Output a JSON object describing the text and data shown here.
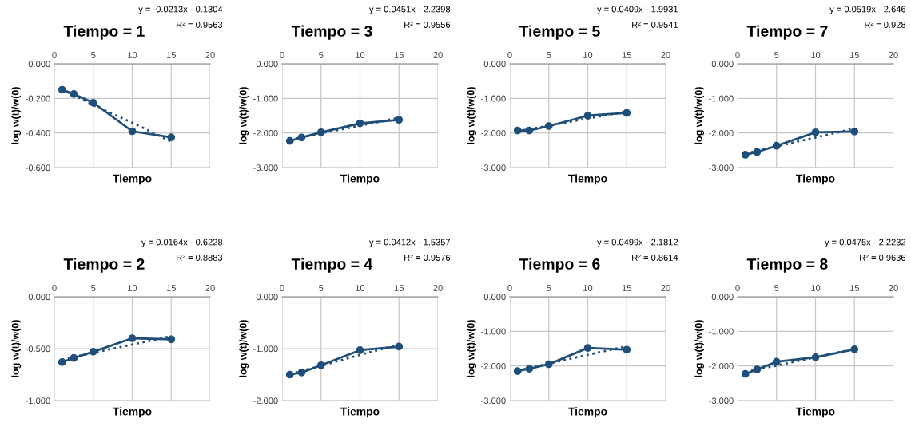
{
  "chart_data": [
    {
      "type": "line",
      "title": "Tiempo = 1",
      "xlabel": "Tiempo",
      "ylabel": "log w(t)/w(0)",
      "annotations": [
        "y = -0.0213x - 0.1304",
        "R² = 0.9563"
      ],
      "x": [
        1,
        2.5,
        5,
        10,
        15
      ],
      "xlim": [
        0,
        20
      ],
      "xticks": [
        0,
        5,
        10,
        15,
        20
      ],
      "ylim": [
        -0.6,
        0
      ],
      "yticks": [
        {
          "value": 0,
          "label": "0.000"
        },
        {
          "value": -0.2,
          "label": "-0.200"
        },
        {
          "value": -0.4,
          "label": "-0.400"
        },
        {
          "value": -0.6,
          "label": "-0.600"
        }
      ],
      "grid": true,
      "legend": false,
      "series": [
        {
          "color": "#1f4e79",
          "marker": "circle",
          "line_style": "solid",
          "values": [
            -0.15,
            -0.175,
            -0.225,
            -0.39,
            -0.425
          ]
        },
        {
          "color": "#1f4e79",
          "marker": "none",
          "line_style": "dotted",
          "values": [
            -0.15,
            -0.18,
            -0.24,
            -0.34,
            -0.45
          ]
        }
      ]
    },
    {
      "type": "line",
      "title": "Tiempo = 3",
      "xlabel": "Tiempo",
      "ylabel": "log w(t)/w(0)",
      "annotations": [
        "y = 0.0451x - 2.2398",
        "R² = 0.9556"
      ],
      "x": [
        1,
        2.5,
        5,
        10,
        15
      ],
      "xlim": [
        0,
        20
      ],
      "xticks": [
        0,
        5,
        10,
        15,
        20
      ],
      "ylim": [
        -3,
        0
      ],
      "yticks": [
        {
          "value": 0,
          "label": "0.000"
        },
        {
          "value": -1,
          "label": "-1.000"
        },
        {
          "value": -2,
          "label": "-2.000"
        },
        {
          "value": -3,
          "label": "-3.000"
        }
      ],
      "grid": true,
      "legend": false,
      "series": [
        {
          "color": "#1f4e79",
          "marker": "circle",
          "line_style": "solid",
          "values": [
            -2.23,
            -2.13,
            -1.98,
            -1.72,
            -1.62
          ]
        },
        {
          "color": "#1f4e79",
          "marker": "none",
          "line_style": "dotted",
          "values": [
            -2.19,
            -2.13,
            -2.01,
            -1.79,
            -1.56
          ]
        }
      ]
    },
    {
      "type": "line",
      "title": "Tiempo = 5",
      "xlabel": "Tiempo",
      "ylabel": "log w(t)/w(0)",
      "annotations": [
        "y = 0.0409x - 1.9931",
        "R² = 0.9541"
      ],
      "x": [
        1,
        2.5,
        5,
        10,
        15
      ],
      "xlim": [
        0,
        20
      ],
      "xticks": [
        0,
        5,
        10,
        15,
        20
      ],
      "ylim": [
        -3,
        0
      ],
      "yticks": [
        {
          "value": 0,
          "label": "0.000"
        },
        {
          "value": -1,
          "label": "-1.000"
        },
        {
          "value": -2,
          "label": "-2.000"
        },
        {
          "value": -3,
          "label": "-3.000"
        }
      ],
      "grid": true,
      "legend": false,
      "series": [
        {
          "color": "#1f4e79",
          "marker": "circle",
          "line_style": "solid",
          "values": [
            -1.93,
            -1.93,
            -1.8,
            -1.5,
            -1.42
          ]
        },
        {
          "color": "#1f4e79",
          "marker": "none",
          "line_style": "dotted",
          "values": [
            -1.95,
            -1.89,
            -1.79,
            -1.58,
            -1.38
          ]
        }
      ]
    },
    {
      "type": "line",
      "title": "Tiempo = 7",
      "xlabel": "Tiempo",
      "ylabel": "log w(t)/w(0)",
      "annotations": [
        "y = 0.0519x - 2.646",
        "R² = 0.928"
      ],
      "x": [
        1,
        2.5,
        5,
        10,
        15
      ],
      "xlim": [
        0,
        20
      ],
      "xticks": [
        0,
        5,
        10,
        15,
        20
      ],
      "ylim": [
        -3,
        0
      ],
      "yticks": [
        {
          "value": 0,
          "label": "0.000"
        },
        {
          "value": -1,
          "label": "-1.000"
        },
        {
          "value": -2,
          "label": "-2.000"
        },
        {
          "value": -3,
          "label": "-3.000"
        }
      ],
      "grid": true,
      "legend": false,
      "series": [
        {
          "color": "#1f4e79",
          "marker": "circle",
          "line_style": "solid",
          "values": [
            -2.63,
            -2.55,
            -2.37,
            -1.98,
            -1.96
          ]
        },
        {
          "color": "#1f4e79",
          "marker": "none",
          "line_style": "dotted",
          "values": [
            -2.59,
            -2.52,
            -2.39,
            -2.13,
            -1.87
          ]
        }
      ]
    },
    {
      "type": "line",
      "title": "Tiempo = 2",
      "xlabel": "Tiempo",
      "ylabel": "log w(t)/w(0)",
      "annotations": [
        "y = 0.0164x - 0.6228",
        "R² = 0.8883"
      ],
      "x": [
        1,
        2.5,
        5,
        10,
        15
      ],
      "xlim": [
        0,
        20
      ],
      "xticks": [
        0,
        5,
        10,
        15,
        20
      ],
      "ylim": [
        -1,
        0
      ],
      "yticks": [
        {
          "value": 0,
          "label": "0.000"
        },
        {
          "value": -0.5,
          "label": "-0.500"
        },
        {
          "value": -1,
          "label": "-1.000"
        }
      ],
      "grid": true,
      "legend": false,
      "series": [
        {
          "color": "#1f4e79",
          "marker": "circle",
          "line_style": "solid",
          "values": [
            -0.63,
            -0.59,
            -0.53,
            -0.4,
            -0.41
          ]
        },
        {
          "color": "#1f4e79",
          "marker": "none",
          "line_style": "dotted",
          "values": [
            -0.61,
            -0.58,
            -0.54,
            -0.46,
            -0.38
          ]
        }
      ]
    },
    {
      "type": "line",
      "title": "Tiempo = 4",
      "xlabel": "Tiempo",
      "ylabel": "log w(t)/w(0)",
      "annotations": [
        "y = 0.0412x - 1.5357",
        "R² = 0.9576"
      ],
      "x": [
        1,
        2.5,
        5,
        10,
        15
      ],
      "xlim": [
        0,
        20
      ],
      "xticks": [
        0,
        5,
        10,
        15,
        20
      ],
      "ylim": [
        -2,
        0
      ],
      "yticks": [
        {
          "value": 0,
          "label": "0.000"
        },
        {
          "value": -1,
          "label": "-1.000"
        },
        {
          "value": -2,
          "label": "-2.000"
        }
      ],
      "grid": true,
      "legend": false,
      "series": [
        {
          "color": "#1f4e79",
          "marker": "circle",
          "line_style": "solid",
          "values": [
            -1.5,
            -1.46,
            -1.32,
            -1.03,
            -0.96
          ]
        },
        {
          "color": "#1f4e79",
          "marker": "none",
          "line_style": "dotted",
          "values": [
            -1.49,
            -1.43,
            -1.33,
            -1.12,
            -0.92
          ]
        }
      ]
    },
    {
      "type": "line",
      "title": "Tiempo = 6",
      "xlabel": "Tiempo",
      "ylabel": "log w(t)/w(0)",
      "annotations": [
        "y = 0.0499x - 2.1812",
        "R² = 0.8614"
      ],
      "x": [
        1,
        2.5,
        5,
        10,
        15
      ],
      "xlim": [
        0,
        20
      ],
      "xticks": [
        0,
        5,
        10,
        15,
        20
      ],
      "ylim": [
        -3,
        0
      ],
      "yticks": [
        {
          "value": 0,
          "label": "0.000"
        },
        {
          "value": -1,
          "label": "-1.000"
        },
        {
          "value": -2,
          "label": "-2.000"
        },
        {
          "value": -3,
          "label": "-3.000"
        }
      ],
      "grid": true,
      "legend": false,
      "series": [
        {
          "color": "#1f4e79",
          "marker": "circle",
          "line_style": "solid",
          "values": [
            -2.15,
            -2.08,
            -1.95,
            -1.48,
            -1.53
          ]
        },
        {
          "color": "#1f4e79",
          "marker": "none",
          "line_style": "dotted",
          "values": [
            -2.13,
            -2.06,
            -1.93,
            -1.68,
            -1.43
          ]
        }
      ]
    },
    {
      "type": "line",
      "title": "Tiempo = 8",
      "xlabel": "Tiempo",
      "ylabel": "log w(t)/w(0)",
      "annotations": [
        "y = 0.0475x - 2.2232",
        "R² = 0.9636"
      ],
      "x": [
        1,
        2.5,
        5,
        10,
        15
      ],
      "xlim": [
        0,
        20
      ],
      "xticks": [
        0,
        5,
        10,
        15,
        20
      ],
      "ylim": [
        -3,
        0
      ],
      "yticks": [
        {
          "value": 0,
          "label": "0.000"
        },
        {
          "value": -1,
          "label": "-1.000"
        },
        {
          "value": -2,
          "label": "-2.000"
        },
        {
          "value": -3,
          "label": "-3.000"
        }
      ],
      "grid": true,
      "legend": false,
      "series": [
        {
          "color": "#1f4e79",
          "marker": "circle",
          "line_style": "solid",
          "values": [
            -2.23,
            -2.1,
            -1.88,
            -1.75,
            -1.52
          ]
        },
        {
          "color": "#1f4e79",
          "marker": "none",
          "line_style": "dotted",
          "values": [
            -2.18,
            -2.1,
            -1.99,
            -1.75,
            -1.51
          ]
        }
      ]
    }
  ]
}
